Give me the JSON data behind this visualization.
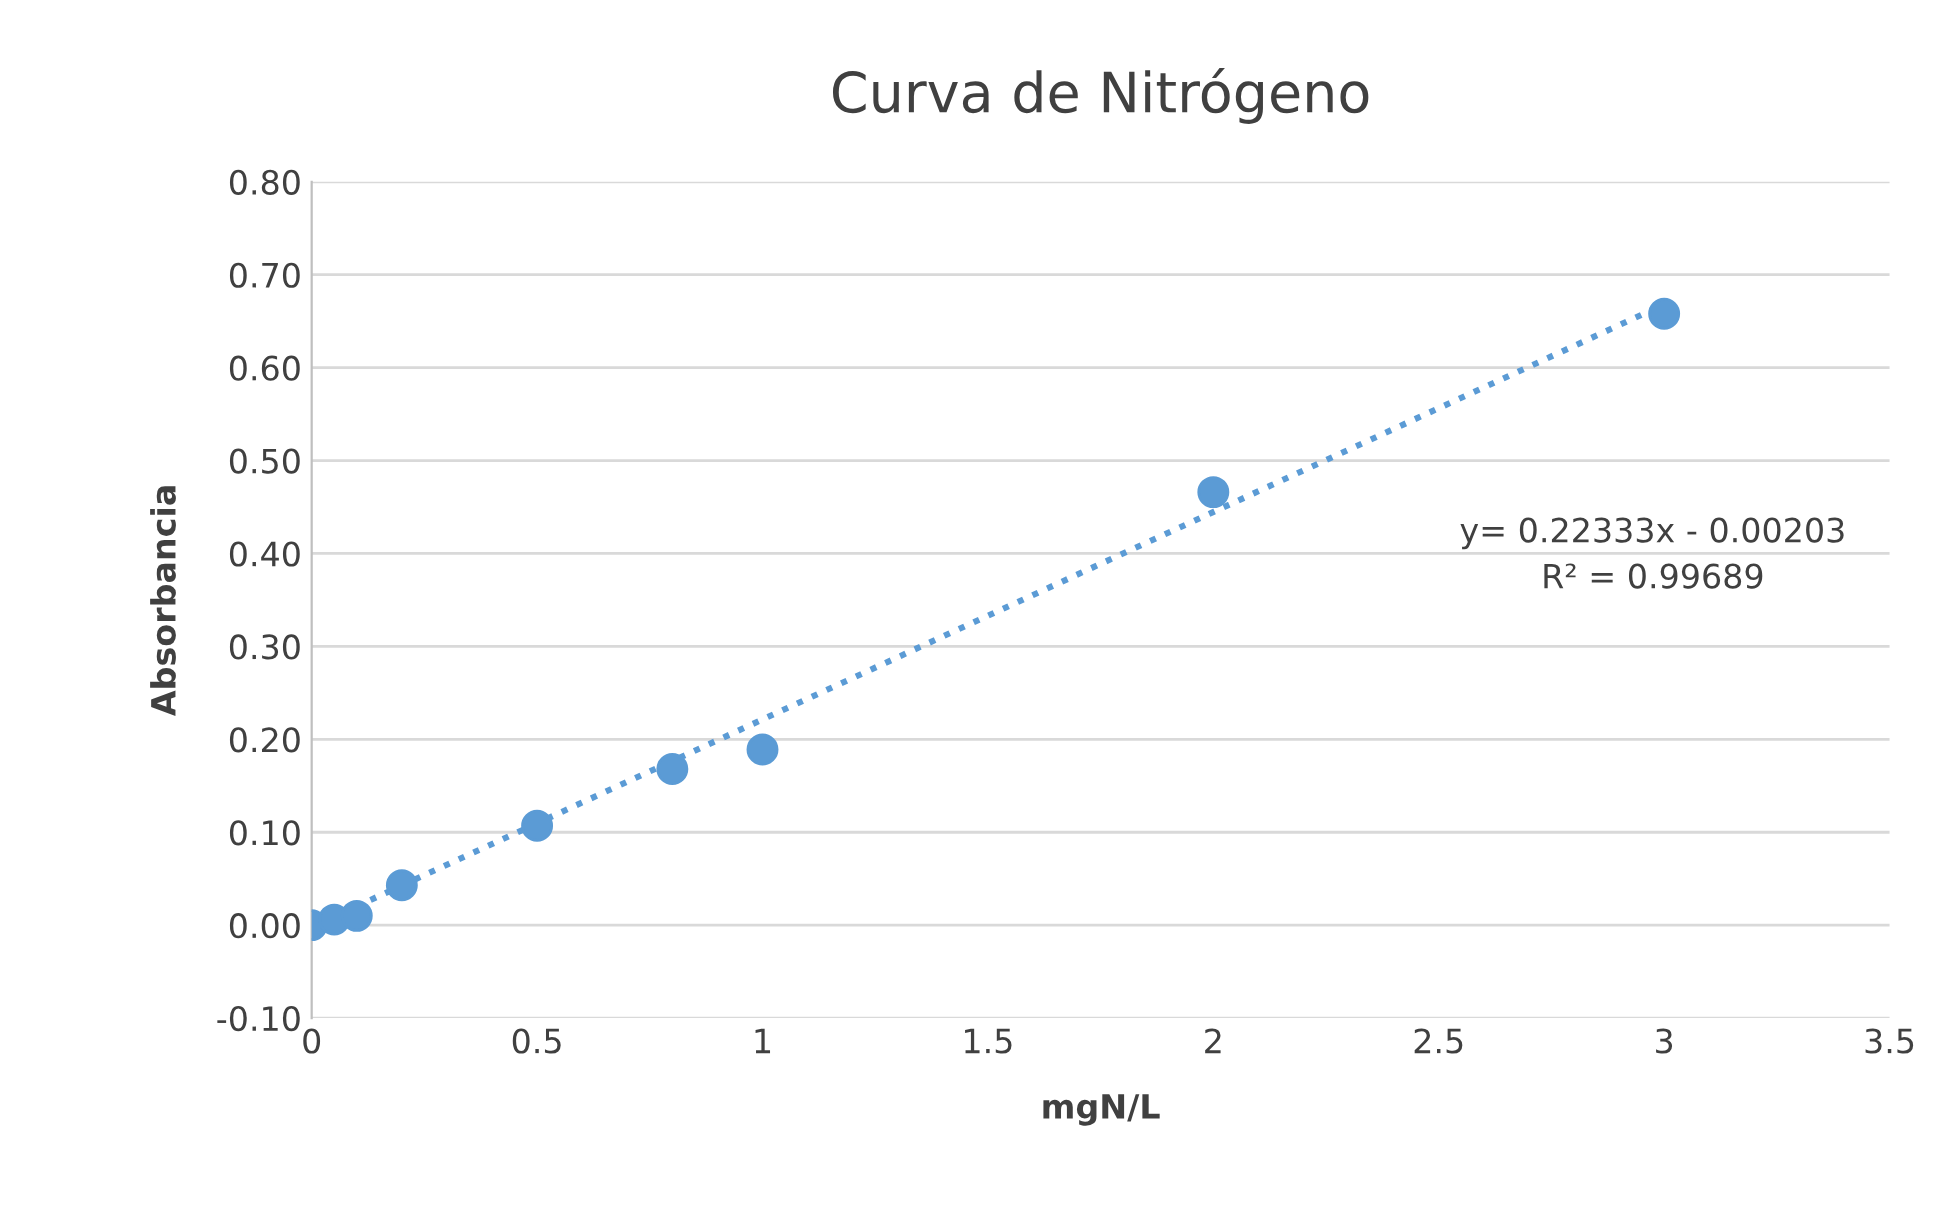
{
  "chart_data": {
    "type": "scatter",
    "title": "Curva de Nitrógeno",
    "xlabel": "mgN/L",
    "ylabel": "Absorbancia",
    "series": [
      {
        "color": "#5b9bd5",
        "marker": "circle",
        "x": [
          0,
          0.025,
          0.05,
          0.1,
          0.2,
          0.5,
          0.8,
          1,
          2,
          3
        ],
        "values": [
          0.0,
          null,
          0.006,
          0.01,
          0.043,
          0.107,
          0.168,
          0.189,
          0.466,
          0.658
        ]
      },
      {
        "type": "line",
        "color": "#5b9bd5",
        "line_style": "dotted",
        "marker": "none",
        "x": [
          0,
          3
        ],
        "values": [
          -0.002,
          0.668
        ]
      }
    ],
    "annotations": [
      "y= 0.22333x - 0.00203",
      "R² = 0.99689"
    ],
    "xlim": [
      0,
      3.5
    ],
    "xticks": [
      {
        "value": 0,
        "label": "0"
      },
      0.5,
      {
        "value": 1,
        "label": "1"
      },
      1.5,
      {
        "value": 2,
        "label": "2"
      },
      2.5,
      {
        "value": 3,
        "label": "3"
      },
      3.5
    ],
    "ylim": [
      -0.1,
      0.8
    ],
    "yticks": [
      {
        "value": -0.1,
        "label": "-0.10"
      },
      {
        "value": 0,
        "label": "0.00"
      },
      {
        "value": 0.1,
        "label": "0.10"
      },
      {
        "value": 0.2,
        "label": "0.20"
      },
      {
        "value": 0.3,
        "label": "0.30"
      },
      {
        "value": 0.4,
        "label": "0.40"
      },
      {
        "value": 0.5,
        "label": "0.50"
      },
      {
        "value": 0.6,
        "label": "0.60"
      },
      {
        "value": 0.7,
        "label": "0.70"
      },
      {
        "value": 0.8,
        "label": "0.80"
      }
    ],
    "grid": "y",
    "legend": false
  }
}
